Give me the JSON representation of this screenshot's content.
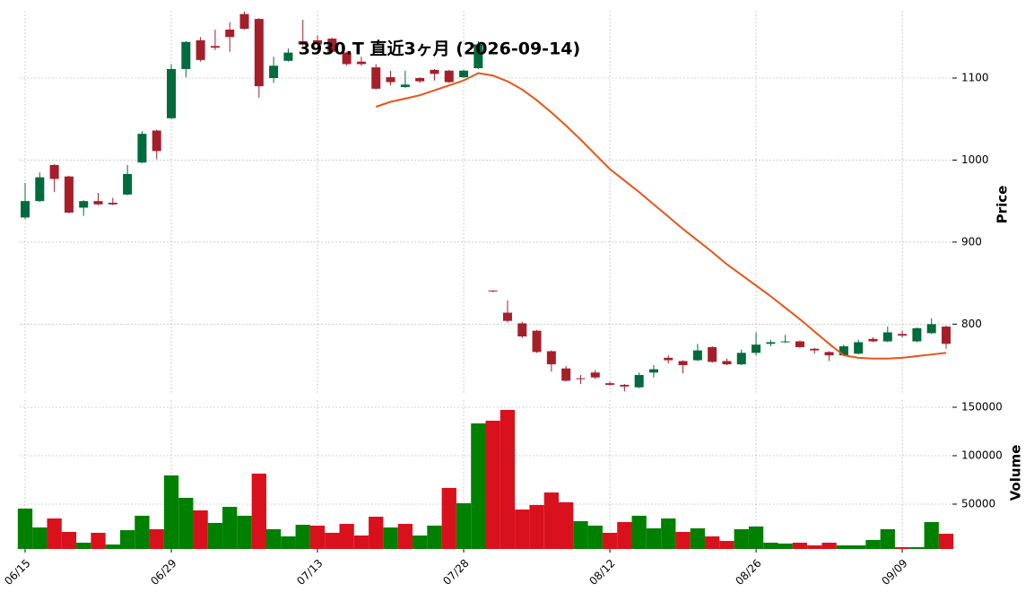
{
  "chart_data": [
    {
      "type": "candlestick",
      "title": "3930.T 直近3ヶ月 (2026-09-14)",
      "ylabel": "Price",
      "categories": [
        "06/15",
        null,
        null,
        null,
        null,
        null,
        null,
        null,
        null,
        null,
        "06/29",
        null,
        null,
        null,
        null,
        null,
        null,
        null,
        null,
        null,
        "07/13",
        null,
        null,
        null,
        null,
        null,
        null,
        null,
        null,
        null,
        "07/28",
        null,
        null,
        null,
        null,
        null,
        null,
        null,
        null,
        null,
        "08/12",
        null,
        null,
        null,
        null,
        null,
        null,
        null,
        null,
        null,
        "08/26",
        null,
        null,
        null,
        null,
        null,
        null,
        null,
        null,
        null,
        "09/09",
        null,
        null,
        null
      ],
      "open": [
        930,
        950,
        994,
        980,
        942,
        950,
        948,
        958,
        997,
        1036,
        1051,
        1111,
        1146,
        1139,
        1159,
        1178,
        1172,
        1100,
        1121,
        1145,
        1146,
        1148,
        1131,
        1120,
        1113,
        1101,
        1089,
        1100,
        1110,
        1109,
        1101,
        1112,
        841,
        814,
        801,
        792,
        767,
        746,
        734,
        741,
        728,
        726,
        723,
        741,
        759,
        755,
        756,
        772,
        755,
        751,
        765,
        776,
        778,
        779,
        770,
        766,
        762,
        764,
        782,
        779,
        788,
        779,
        789,
        797
      ],
      "high": [
        972,
        985,
        995,
        981,
        951,
        960,
        954,
        994,
        1035,
        1037,
        1117,
        1145,
        1150,
        1159,
        1168,
        1181,
        1173,
        1126,
        1136,
        1171,
        1152,
        1149,
        1132,
        1126,
        1117,
        1109,
        1109,
        1101,
        1111,
        1110,
        1110,
        1145,
        841,
        829,
        803,
        793,
        768,
        749,
        738,
        744,
        730,
        727,
        741,
        750,
        762,
        756,
        776,
        773,
        758,
        769,
        790,
        781,
        787,
        780,
        771,
        767,
        775,
        781,
        784,
        797,
        792,
        796,
        807,
        798
      ],
      "low": [
        928,
        949,
        961,
        935,
        932,
        945,
        945,
        957,
        996,
        1001,
        1050,
        1101,
        1120,
        1134,
        1132,
        1159,
        1076,
        1094,
        1120,
        1139,
        1140,
        1131,
        1115,
        1115,
        1086,
        1091,
        1088,
        1094,
        1097,
        1094,
        1100,
        1111,
        839,
        802,
        783,
        765,
        742,
        730,
        727,
        733,
        725,
        718,
        722,
        735,
        752,
        740,
        755,
        753,
        750,
        750,
        762,
        773,
        777,
        771,
        764,
        755,
        761,
        763,
        778,
        778,
        784,
        778,
        788,
        770
      ],
      "close": [
        950,
        979,
        977,
        936,
        950,
        946,
        946,
        983,
        1032,
        1011,
        1111,
        1144,
        1122,
        1137,
        1150,
        1160,
        1090,
        1115,
        1131,
        1141,
        1141,
        1132,
        1117,
        1117,
        1087,
        1095,
        1092,
        1096,
        1105,
        1095,
        1109,
        1141,
        840,
        804,
        785,
        766,
        751,
        731,
        733,
        735,
        726,
        724,
        738,
        745,
        756,
        750,
        768,
        754,
        751,
        765,
        775,
        778,
        779,
        772,
        768,
        762,
        773,
        778,
        779,
        790,
        786,
        795,
        800,
        776
      ],
      "up_color": "#006b3c",
      "down_color": "#a51f2b",
      "moving_average": {
        "color": "#e8541a",
        "values": [
          null,
          null,
          null,
          null,
          null,
          null,
          null,
          null,
          null,
          null,
          null,
          null,
          null,
          null,
          null,
          null,
          null,
          null,
          null,
          null,
          null,
          null,
          null,
          null,
          1065,
          1071,
          1075,
          1079,
          1085,
          1091,
          1097,
          1106,
          1103,
          1096,
          1086,
          1073,
          1058,
          1042,
          1025,
          1007,
          989,
          975,
          961,
          946,
          931,
          916,
          902,
          888,
          873,
          860,
          847,
          834,
          820,
          806,
          791,
          776,
          762,
          759,
          758,
          758,
          759,
          761,
          763,
          765
        ]
      },
      "ylim": [
        714,
        1182
      ],
      "yticks": [
        800,
        900,
        1000,
        1100
      ],
      "grid": true
    },
    {
      "type": "bar",
      "ylabel": "Volume",
      "values": [
        45400,
        25900,
        35200,
        21300,
        10200,
        20400,
        8300,
        23100,
        38000,
        24100,
        79600,
        56500,
        43500,
        30600,
        47200,
        38000,
        81500,
        24100,
        16700,
        28700,
        27800,
        20400,
        29600,
        17600,
        37000,
        25900,
        29600,
        17600,
        27800,
        66700,
        50900,
        133300,
        136100,
        147200,
        44400,
        49100,
        62000,
        51900,
        32400,
        27800,
        20400,
        31500,
        38000,
        25000,
        35200,
        21300,
        25000,
        16700,
        12000,
        24100,
        26900,
        10200,
        9300,
        10200,
        7400,
        10200,
        7400,
        7400,
        13000,
        24100,
        5600,
        5600,
        31500,
        19400
      ],
      "colors": [
        "#008000",
        "#008000",
        "#d9111c",
        "#d9111c",
        "#008000",
        "#d9111c",
        "#008000",
        "#008000",
        "#008000",
        "#d9111c",
        "#008000",
        "#008000",
        "#d9111c",
        "#008000",
        "#008000",
        "#008000",
        "#d9111c",
        "#008000",
        "#008000",
        "#008000",
        "#d9111c",
        "#d9111c",
        "#d9111c",
        "#d9111c",
        "#d9111c",
        "#008000",
        "#d9111c",
        "#008000",
        "#008000",
        "#d9111c",
        "#008000",
        "#008000",
        "#d9111c",
        "#d9111c",
        "#d9111c",
        "#d9111c",
        "#d9111c",
        "#d9111c",
        "#008000",
        "#008000",
        "#d9111c",
        "#d9111c",
        "#008000",
        "#008000",
        "#008000",
        "#d9111c",
        "#008000",
        "#d9111c",
        "#d9111c",
        "#008000",
        "#008000",
        "#008000",
        "#008000",
        "#d9111c",
        "#d9111c",
        "#d9111c",
        "#008000",
        "#008000",
        "#008000",
        "#008000",
        "#d9111c",
        "#008000",
        "#008000",
        "#d9111c"
      ],
      "ylim": [
        3700,
        157400
      ],
      "yticks": [
        50000,
        100000,
        150000
      ],
      "grid": true
    }
  ]
}
